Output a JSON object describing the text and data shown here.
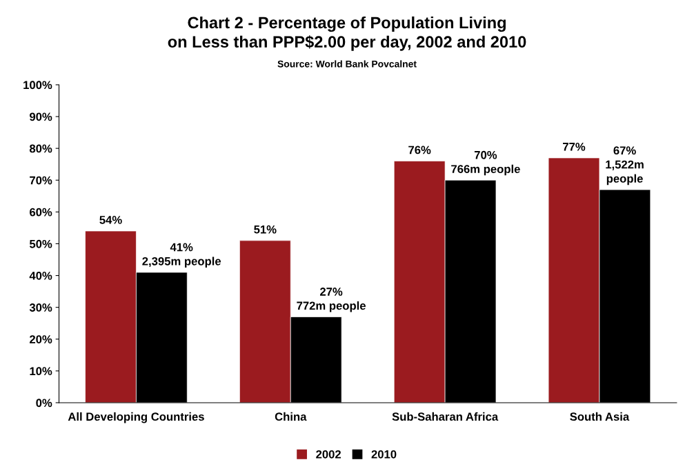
{
  "chart_data": {
    "type": "bar",
    "title": "Chart 2 - Percentage of Population Living\non Less than PPP$2.00 per day, 2002 and 2010",
    "subtitle": "Source: World Bank Povcalnet",
    "categories": [
      "All Developing Countries",
      "China",
      "Sub-Saharan Africa",
      "South Asia"
    ],
    "series": [
      {
        "name": "2002",
        "color": "#9b1b1f",
        "values": [
          54,
          51,
          76,
          77
        ],
        "value_labels": [
          "54%",
          "51%",
          "76%",
          "77%"
        ]
      },
      {
        "name": "2010",
        "color": "#000000",
        "values": [
          41,
          27,
          70,
          67
        ],
        "value_labels": [
          "41%\n2,395m people",
          "27%\n772m people",
          "70%\n766m people",
          "67%\n1,522m\npeople"
        ]
      }
    ],
    "ylim": [
      0,
      100
    ],
    "yticks": [
      {
        "value": 0,
        "label": "0%"
      },
      {
        "value": 10,
        "label": "10%"
      },
      {
        "value": 20,
        "label": "20%"
      },
      {
        "value": 30,
        "label": "30%"
      },
      {
        "value": 40,
        "label": "40%"
      },
      {
        "value": 50,
        "label": "50%"
      },
      {
        "value": 60,
        "label": "60%"
      },
      {
        "value": 70,
        "label": "70%"
      },
      {
        "value": 80,
        "label": "80%"
      },
      {
        "value": 90,
        "label": "90%"
      },
      {
        "value": 100,
        "label": "100%"
      }
    ],
    "grid": false,
    "legend": "bottom"
  }
}
